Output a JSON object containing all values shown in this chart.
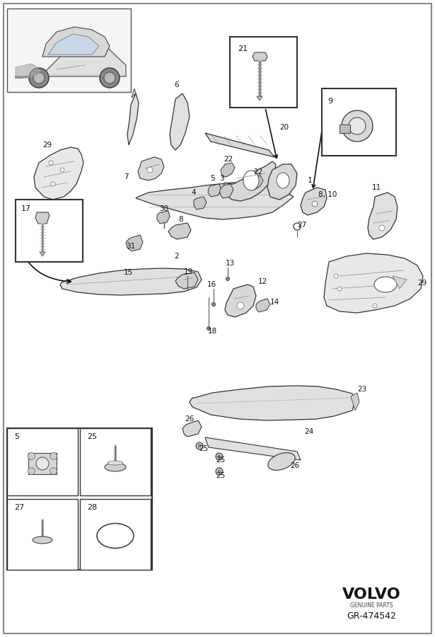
{
  "background_color": "#ffffff",
  "border_color": "#555555",
  "text_color": "#111111",
  "volvo_text": "VOLVO",
  "genuine_parts": "GENUINE PARTS",
  "part_number": "GR-474542",
  "fig_width": 6.15,
  "fig_height": 9.0,
  "dpi": 100,
  "line_color": "#333333",
  "fill_light": "#e8e8e8",
  "fill_mid": "#d0d0d0",
  "fill_dark": "#b8b8b8"
}
